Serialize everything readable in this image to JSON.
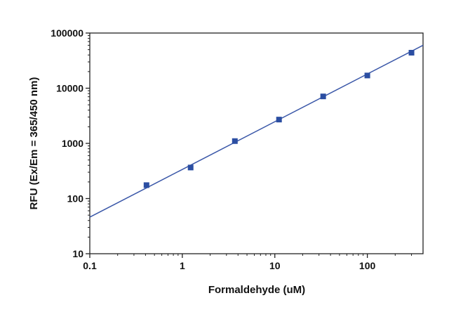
{
  "chart_data": {
    "type": "scatter",
    "title": "",
    "xlabel": "Formaldehyde (uM)",
    "ylabel": "RFU (Ex/Em = 365/450 nm)",
    "xscale": "log",
    "yscale": "log",
    "xlim": [
      0.1,
      400
    ],
    "ylim": [
      10,
      100000
    ],
    "x_ticks": [
      0.1,
      1,
      10,
      100
    ],
    "x_tick_labels": [
      "0.1",
      "1",
      "10",
      "100"
    ],
    "y_ticks": [
      10,
      100,
      1000,
      10000,
      100000
    ],
    "y_tick_labels": [
      "10",
      "100",
      "1000",
      "10000",
      "100000"
    ],
    "grid": false,
    "legend": "none",
    "series": [
      {
        "x": [
          0.41,
          1.23,
          3.7,
          11.1,
          33.3,
          100,
          300
        ],
        "y": [
          175,
          365,
          1100,
          2700,
          7100,
          17000,
          44000
        ]
      }
    ],
    "fit_line": {
      "x": [
        0.1,
        400
      ],
      "y": [
        46,
        60000
      ]
    },
    "colors": {
      "marker": "#2b4ea2",
      "line": "#3a57a8",
      "axis": "#222222",
      "text": "#111111"
    }
  }
}
